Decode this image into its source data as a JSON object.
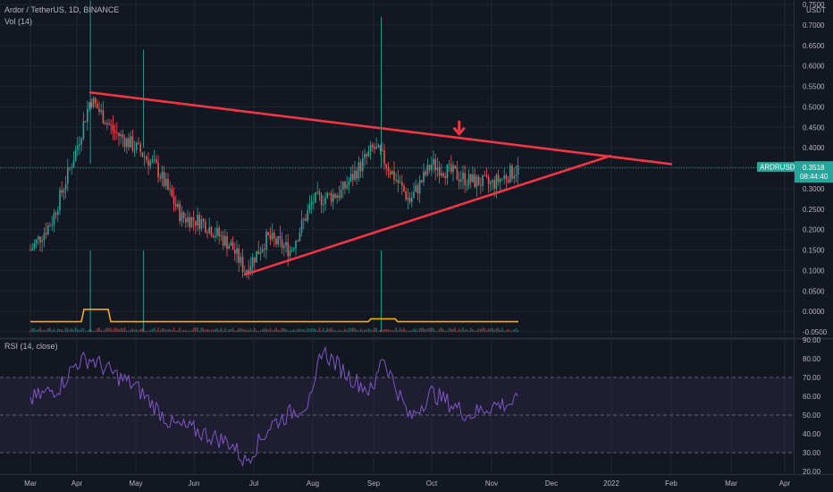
{
  "header": {
    "symbol_line": "Ardor / TetherUS, 1D, BINANCE",
    "vol_label": "Vol (14)",
    "rsi_label": "RSI (14, close)"
  },
  "price_tag": {
    "symbol": "ARDRUSDT",
    "price": "0.3518",
    "countdown": "08:44:40"
  },
  "chart_data": [
    {
      "type": "candlestick",
      "title": "Ardor / TetherUS, 1D, BINANCE",
      "currency_label": "USDT",
      "y_ticks": [
        0.75,
        0.7,
        0.65,
        0.6,
        0.55,
        0.5,
        0.45,
        0.4,
        0.35,
        0.3,
        0.25,
        0.2,
        0.15,
        0.1,
        0.05,
        0.0,
        -0.05
      ],
      "y_tick_labels": [
        "0.7500",
        "0.7000",
        "0.6500",
        "0.6000",
        "0.5500",
        "0.5000",
        "0.4500",
        "0.4000",
        "0.3500",
        "0.3000",
        "0.2500",
        "0.2000",
        "0.1500",
        "0.1000",
        "0.0500",
        "0.0000",
        "-0.0500"
      ],
      "ylim": [
        -0.05,
        0.75
      ],
      "x_labels": [
        "Mar",
        "Apr",
        "May",
        "Jun",
        "Jul",
        "Aug",
        "Sep",
        "Oct",
        "Nov",
        "Dec",
        "2022",
        "Feb",
        "Mar",
        "Apr"
      ],
      "x": [
        "Mar 1",
        "Mar 15",
        "Apr 1",
        "Apr 8",
        "Apr 20",
        "May 1",
        "May 12",
        "May 25",
        "Jun 5",
        "Jun 20",
        "Jun 27",
        "Jul 8",
        "Jul 20",
        "Aug 1",
        "Aug 15",
        "Sep 1",
        "Sep 5",
        "Sep 20",
        "Oct 1",
        "Oct 20",
        "Nov 1",
        "Nov 15"
      ],
      "close_approx": [
        0.15,
        0.22,
        0.4,
        0.52,
        0.44,
        0.4,
        0.35,
        0.23,
        0.22,
        0.16,
        0.1,
        0.18,
        0.15,
        0.27,
        0.29,
        0.4,
        0.38,
        0.27,
        0.36,
        0.32,
        0.31,
        0.35
      ],
      "last_price": 0.3518,
      "volume_line": [
        {
          "date": "Mar",
          "value": 0.0
        },
        {
          "date": "Apr 8",
          "value": 0.03
        },
        {
          "date": "Apr 20",
          "value": 0.0
        },
        {
          "date": "Sep 1",
          "value": 0.005
        },
        {
          "date": "Nov 15",
          "value": 0.0
        }
      ],
      "annotations": [
        {
          "type": "trendline",
          "from": {
            "date": "Apr 8",
            "price": 0.535
          },
          "to": {
            "date": "Feb 1",
            "price": 0.36
          }
        },
        {
          "type": "trendline",
          "from": {
            "date": "Jun 27",
            "price": 0.09
          },
          "to": {
            "date": "Dec 31",
            "price": 0.38
          }
        },
        {
          "type": "arrow",
          "direction": "down",
          "date": "Oct 15",
          "price": 0.44
        }
      ]
    },
    {
      "type": "line",
      "title": "RSI (14, close)",
      "y_ticks": [
        90,
        80,
        70,
        60,
        50,
        40,
        30,
        20
      ],
      "y_tick_labels": [
        "90.00",
        "80.00",
        "70.00",
        "60.00",
        "50.00",
        "40.00",
        "30.00",
        "20.00"
      ],
      "ylim": [
        20,
        90
      ],
      "bands": [
        70,
        50,
        30
      ],
      "x": [
        "Mar 1",
        "Mar 20",
        "Apr 1",
        "Apr 8",
        "Apr 20",
        "May 1",
        "May 20",
        "Jun 1",
        "Jun 20",
        "Jun 27",
        "Jul 10",
        "Aug 1",
        "Aug 5",
        "Aug 20",
        "Sep 1",
        "Sep 5",
        "Sep 20",
        "Oct 1",
        "Oct 20",
        "Nov 1",
        "Nov 15"
      ],
      "values": [
        58,
        65,
        78,
        80,
        72,
        65,
        45,
        42,
        35,
        25,
        45,
        58,
        85,
        70,
        62,
        83,
        48,
        62,
        50,
        55,
        57
      ]
    }
  ]
}
